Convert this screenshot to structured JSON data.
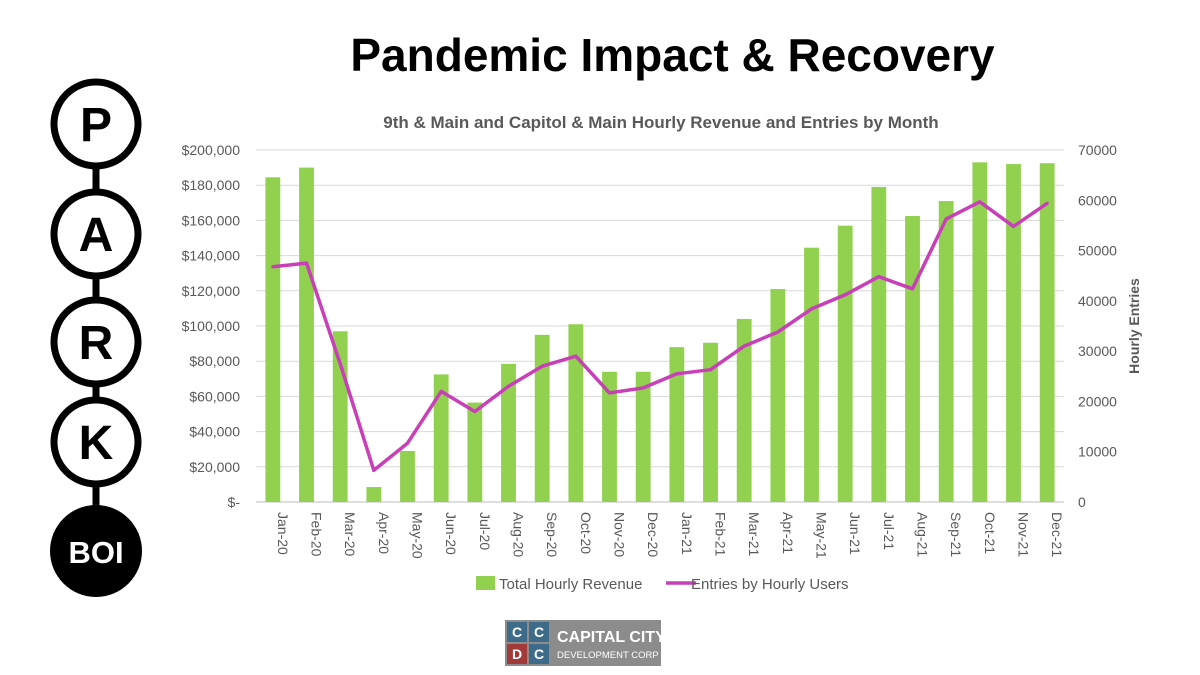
{
  "slide": {
    "title": "Pandemic Impact & Recovery"
  },
  "logo": {
    "letters": [
      "P",
      "A",
      "R",
      "K"
    ],
    "tag": "BOI"
  },
  "footer_logo": {
    "cells": [
      "C",
      "C",
      "D",
      "C"
    ],
    "line1": "CAPITAL CITY",
    "line2": "DEVELOPMENT CORP"
  },
  "colors": {
    "bar": "#92D050",
    "line": "#C83FB8",
    "grid": "#D9D9D9",
    "axis_text": "#595959"
  },
  "chart_data": {
    "type": "bar",
    "title": "9th & Main and Capitol & Main Hourly Revenue and Entries by Month",
    "xlabel": "",
    "ylabel": "",
    "y2label": "Hourly Entries",
    "categories": [
      "Jan-20",
      "Feb-20",
      "Mar-20",
      "Apr-20",
      "May-20",
      "Jun-20",
      "Jul-20",
      "Aug-20",
      "Sep-20",
      "Oct-20",
      "Nov-20",
      "Dec-20",
      "Jan-21",
      "Feb-21",
      "Mar-21",
      "Apr-21",
      "May-21",
      "Jun-21",
      "Jul-21",
      "Aug-21",
      "Sep-21",
      "Oct-21",
      "Nov-21",
      "Dec-21"
    ],
    "ylim": [
      0,
      200000
    ],
    "y_ticks": [
      {
        "value": 0,
        "label": "$-"
      },
      {
        "value": 20000,
        "label": "$20,000"
      },
      {
        "value": 40000,
        "label": "$40,000"
      },
      {
        "value": 60000,
        "label": "$60,000"
      },
      {
        "value": 80000,
        "label": "$80,000"
      },
      {
        "value": 100000,
        "label": "$100,000"
      },
      {
        "value": 120000,
        "label": "$120,000"
      },
      {
        "value": 140000,
        "label": "$140,000"
      },
      {
        "value": 160000,
        "label": "$160,000"
      },
      {
        "value": 180000,
        "label": "$180,000"
      },
      {
        "value": 200000,
        "label": "$200,000"
      }
    ],
    "y2lim": [
      0,
      70000
    ],
    "y2_ticks": [
      {
        "value": 0,
        "label": "0"
      },
      {
        "value": 10000,
        "label": "10000"
      },
      {
        "value": 20000,
        "label": "20000"
      },
      {
        "value": 30000,
        "label": "30000"
      },
      {
        "value": 40000,
        "label": "40000"
      },
      {
        "value": 50000,
        "label": "50000"
      },
      {
        "value": 60000,
        "label": "60000"
      },
      {
        "value": 70000,
        "label": "70000"
      }
    ],
    "grid": true,
    "legend": "bottom",
    "series": [
      {
        "name": "Total Hourly Revenue",
        "type": "bar",
        "axis": "left",
        "values": [
          184500,
          190000,
          97000,
          8500,
          29000,
          72500,
          56500,
          78500,
          95000,
          101000,
          74000,
          74000,
          88000,
          90500,
          104000,
          121000,
          144500,
          157000,
          179000,
          162500,
          171000,
          193000,
          192000,
          192500
        ]
      },
      {
        "name": "Entries by Hourly Users",
        "type": "line",
        "axis": "right",
        "values": [
          46800,
          47500,
          27500,
          6300,
          11700,
          22000,
          18000,
          23000,
          27000,
          29000,
          21700,
          22700,
          25500,
          26300,
          31000,
          33800,
          38400,
          41200,
          44800,
          42400,
          56300,
          59700,
          54800,
          59400
        ]
      }
    ]
  }
}
